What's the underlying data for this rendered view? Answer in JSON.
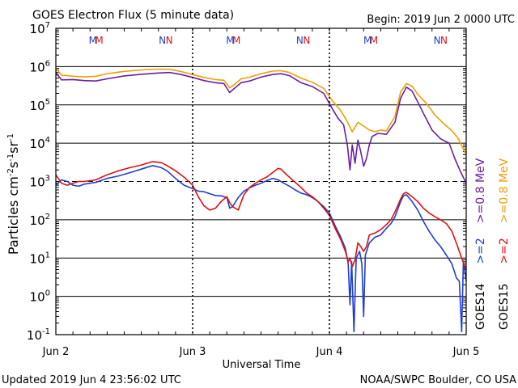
{
  "chart_data": {
    "type": "line",
    "title": "GOES Electron Flux (5 minute data)",
    "begin_label": "Begin: 2019 Jun 2 0000 UTC",
    "xlabel": "Universal Time",
    "ylabel": "Particles cm",
    "ylabel_sup1": "-2",
    "ylabel_mid1": "s",
    "ylabel_sup2": "-1",
    "ylabel_mid2": "sr",
    "ylabel_sup3": "-1",
    "yscale": "log",
    "ylim": [
      0.1,
      10000000
    ],
    "xlim": [
      0,
      72
    ],
    "x_units": "hours since 2019 Jun 2 0000 UTC",
    "x_ticks": [
      {
        "x": 0,
        "label": "Jun 2"
      },
      {
        "x": 24,
        "label": "Jun 3"
      },
      {
        "x": 48,
        "label": "Jun 4"
      },
      {
        "x": 72,
        "label": "Jun 5"
      }
    ],
    "y_ticks": [
      {
        "base": "10",
        "exp": "-1",
        "value": 0.1
      },
      {
        "base": "10",
        "exp": "0",
        "value": 1
      },
      {
        "base": "10",
        "exp": "1",
        "value": 10
      },
      {
        "base": "10",
        "exp": "2",
        "value": 100
      },
      {
        "base": "10",
        "exp": "3",
        "value": 1000
      },
      {
        "base": "10",
        "exp": "4",
        "value": 10000
      },
      {
        "base": "10",
        "exp": "5",
        "value": 100000
      },
      {
        "base": "10",
        "exp": "6",
        "value": 1000000
      },
      {
        "base": "10",
        "exp": "7",
        "value": 10000000
      }
    ],
    "threshold_value": 1000,
    "grid": true,
    "markers": [
      {
        "x": 6.5,
        "label": "M",
        "color": "#1f3fd0"
      },
      {
        "x": 7.6,
        "label": "M",
        "color": "#e01010"
      },
      {
        "x": 18.7,
        "label": "N",
        "color": "#1f3fd0"
      },
      {
        "x": 19.9,
        "label": "N",
        "color": "#e01010"
      },
      {
        "x": 30.6,
        "label": "M",
        "color": "#1f3fd0"
      },
      {
        "x": 31.7,
        "label": "M",
        "color": "#e01010"
      },
      {
        "x": 42.8,
        "label": "N",
        "color": "#1f3fd0"
      },
      {
        "x": 44.0,
        "label": "N",
        "color": "#e01010"
      },
      {
        "x": 54.7,
        "label": "M",
        "color": "#1f3fd0"
      },
      {
        "x": 55.8,
        "label": "M",
        "color": "#e01010"
      },
      {
        "x": 66.9,
        "label": "N",
        "color": "#1f3fd0"
      },
      {
        "x": 68.1,
        "label": "N",
        "color": "#e01010"
      }
    ],
    "legend": {
      "placement": "right",
      "groups": [
        {
          "label": "GOES14",
          "entries": [
            {
              "text": ">=2",
              "color": "#1f3fd0"
            },
            {
              "text": ">=0.8 MeV",
              "color": "#6a1fa0"
            }
          ]
        },
        {
          "label": "GOES15",
          "entries": [
            {
              "text": ">=2",
              "color": "#e01010"
            },
            {
              "text": ">=0.8 MeV",
              "color": "#f0a000"
            }
          ]
        }
      ]
    },
    "series": [
      {
        "name": "GOES14 >=0.8 MeV",
        "color": "#6a1fa0",
        "points": [
          [
            0,
            700000
          ],
          [
            1,
            450000
          ],
          [
            3,
            460000
          ],
          [
            5,
            430000
          ],
          [
            7,
            420000
          ],
          [
            9,
            480000
          ],
          [
            12,
            570000
          ],
          [
            15,
            630000
          ],
          [
            18,
            680000
          ],
          [
            20,
            700000
          ],
          [
            22,
            620000
          ],
          [
            24,
            520000
          ],
          [
            26,
            430000
          ],
          [
            28,
            380000
          ],
          [
            29.5,
            360000
          ],
          [
            30.5,
            210000
          ],
          [
            31.2,
            260000
          ],
          [
            32.5,
            380000
          ],
          [
            34,
            420000
          ],
          [
            36,
            530000
          ],
          [
            38,
            620000
          ],
          [
            39.5,
            650000
          ],
          [
            41,
            580000
          ],
          [
            43,
            380000
          ],
          [
            45,
            300000
          ],
          [
            47,
            200000
          ],
          [
            48.5,
            80000
          ],
          [
            49.5,
            45000
          ],
          [
            50.5,
            30000
          ],
          [
            51.2,
            8000
          ],
          [
            51.6,
            2000
          ],
          [
            52,
            9000
          ],
          [
            52.5,
            3000
          ],
          [
            53,
            12000
          ],
          [
            53.5,
            6000
          ],
          [
            54,
            2500
          ],
          [
            54.5,
            4000
          ],
          [
            55,
            9000
          ],
          [
            55.5,
            15000
          ],
          [
            56.5,
            18000
          ],
          [
            58,
            17000
          ],
          [
            59.5,
            35000
          ],
          [
            60.5,
            150000
          ],
          [
            61.5,
            290000
          ],
          [
            62.5,
            230000
          ],
          [
            63.5,
            120000
          ],
          [
            64.5,
            60000
          ],
          [
            66,
            22000
          ],
          [
            67.5,
            13000
          ],
          [
            69,
            10000
          ],
          [
            70,
            4000
          ],
          [
            71,
            1800
          ],
          [
            72,
            900
          ]
        ]
      },
      {
        "name": "GOES15 >=0.8 MeV",
        "color": "#f0a000",
        "points": [
          [
            0,
            900000
          ],
          [
            1,
            600000
          ],
          [
            3,
            560000
          ],
          [
            5,
            540000
          ],
          [
            7,
            560000
          ],
          [
            9,
            650000
          ],
          [
            12,
            750000
          ],
          [
            15,
            820000
          ],
          [
            18,
            860000
          ],
          [
            20,
            850000
          ],
          [
            22,
            740000
          ],
          [
            24,
            620000
          ],
          [
            26,
            520000
          ],
          [
            28,
            460000
          ],
          [
            29.5,
            440000
          ],
          [
            30.5,
            280000
          ],
          [
            31.2,
            330000
          ],
          [
            32.5,
            480000
          ],
          [
            34,
            530000
          ],
          [
            36,
            650000
          ],
          [
            38,
            760000
          ],
          [
            39.5,
            780000
          ],
          [
            41,
            700000
          ],
          [
            43,
            500000
          ],
          [
            45,
            390000
          ],
          [
            47,
            270000
          ],
          [
            48.5,
            130000
          ],
          [
            50,
            70000
          ],
          [
            51,
            40000
          ],
          [
            52,
            20000
          ],
          [
            53,
            35000
          ],
          [
            54,
            28000
          ],
          [
            55,
            22000
          ],
          [
            56,
            20000
          ],
          [
            57,
            22000
          ],
          [
            58,
            21000
          ],
          [
            59.5,
            50000
          ],
          [
            60.5,
            220000
          ],
          [
            61.5,
            360000
          ],
          [
            62.5,
            310000
          ],
          [
            63.5,
            190000
          ],
          [
            65,
            110000
          ],
          [
            66.5,
            55000
          ],
          [
            68,
            33000
          ],
          [
            69.5,
            21000
          ],
          [
            70.5,
            14000
          ],
          [
            71.5,
            7000
          ],
          [
            72,
            5000
          ]
        ]
      },
      {
        "name": "GOES14 >=2",
        "color": "#1f3fd0",
        "points": [
          [
            0,
            800
          ],
          [
            1,
            1100
          ],
          [
            2,
            1000
          ],
          [
            3,
            800
          ],
          [
            4,
            750
          ],
          [
            5,
            850
          ],
          [
            7,
            950
          ],
          [
            9,
            1200
          ],
          [
            11,
            1400
          ],
          [
            13,
            1700
          ],
          [
            15,
            2100
          ],
          [
            17,
            2600
          ],
          [
            18.5,
            2300
          ],
          [
            19.5,
            1900
          ],
          [
            21,
            1200
          ],
          [
            22.5,
            800
          ],
          [
            24,
            650
          ],
          [
            25,
            560
          ],
          [
            26,
            540
          ],
          [
            27,
            480
          ],
          [
            28,
            430
          ],
          [
            29,
            420
          ],
          [
            30,
            380
          ],
          [
            30.5,
            200
          ],
          [
            31,
            220
          ],
          [
            32,
            380
          ],
          [
            33,
            560
          ],
          [
            34,
            680
          ],
          [
            35,
            800
          ],
          [
            36,
            900
          ],
          [
            37,
            1050
          ],
          [
            38,
            1200
          ],
          [
            39,
            1100
          ],
          [
            40,
            900
          ],
          [
            41,
            750
          ],
          [
            42,
            600
          ],
          [
            43,
            500
          ],
          [
            44,
            450
          ],
          [
            45,
            380
          ],
          [
            46,
            300
          ],
          [
            47,
            220
          ],
          [
            48,
            150
          ],
          [
            49,
            70
          ],
          [
            50,
            35
          ],
          [
            50.8,
            18
          ],
          [
            51.3,
            7
          ],
          [
            51.6,
            0.6
          ],
          [
            51.9,
            8
          ],
          [
            52.3,
            0.12
          ],
          [
            52.7,
            10
          ],
          [
            53.3,
            15
          ],
          [
            53.7,
            7
          ],
          [
            54,
            0.3
          ],
          [
            54.3,
            12
          ],
          [
            55,
            25
          ],
          [
            56,
            35
          ],
          [
            57,
            40
          ],
          [
            58,
            60
          ],
          [
            58.8,
            80
          ],
          [
            59.5,
            120
          ],
          [
            60.5,
            300
          ],
          [
            61,
            420
          ],
          [
            61.5,
            450
          ],
          [
            62.5,
            300
          ],
          [
            63.5,
            180
          ],
          [
            64.5,
            90
          ],
          [
            65.5,
            50
          ],
          [
            66.5,
            30
          ],
          [
            67.5,
            20
          ],
          [
            68.5,
            12
          ],
          [
            69.5,
            7
          ],
          [
            70.3,
            3
          ],
          [
            70.8,
            2.5
          ],
          [
            71.2,
            0.12
          ],
          [
            71.5,
            8
          ],
          [
            72,
            2.5
          ]
        ]
      },
      {
        "name": "GOES15 >=2",
        "color": "#e01010",
        "points": [
          [
            0,
            1500
          ],
          [
            1,
            900
          ],
          [
            2,
            800
          ],
          [
            3,
            900
          ],
          [
            4,
            1000
          ],
          [
            5,
            1000
          ],
          [
            7,
            1100
          ],
          [
            9,
            1500
          ],
          [
            11,
            1900
          ],
          [
            13,
            2300
          ],
          [
            15,
            2700
          ],
          [
            17,
            3300
          ],
          [
            18.5,
            3100
          ],
          [
            19.5,
            2600
          ],
          [
            21,
            1900
          ],
          [
            22.5,
            1300
          ],
          [
            24,
            800
          ],
          [
            25,
            400
          ],
          [
            26,
            230
          ],
          [
            27,
            180
          ],
          [
            28,
            200
          ],
          [
            29,
            300
          ],
          [
            30,
            400
          ],
          [
            30.5,
            280
          ],
          [
            31,
            220
          ],
          [
            32,
            180
          ],
          [
            33,
            450
          ],
          [
            34,
            700
          ],
          [
            35,
            900
          ],
          [
            36,
            1100
          ],
          [
            37,
            1300
          ],
          [
            38,
            1700
          ],
          [
            39,
            2200
          ],
          [
            39.5,
            2100
          ],
          [
            40.5,
            1500
          ],
          [
            41.5,
            1100
          ],
          [
            43,
            700
          ],
          [
            44,
            500
          ],
          [
            45,
            400
          ],
          [
            46,
            300
          ],
          [
            47,
            200
          ],
          [
            48,
            130
          ],
          [
            49,
            60
          ],
          [
            50,
            30
          ],
          [
            50.8,
            15
          ],
          [
            51.3,
            8
          ],
          [
            51.6,
            10
          ],
          [
            52,
            6
          ],
          [
            52.5,
            9
          ],
          [
            53,
            25
          ],
          [
            53.5,
            20
          ],
          [
            54,
            15
          ],
          [
            54.5,
            20
          ],
          [
            55,
            40
          ],
          [
            56,
            45
          ],
          [
            57,
            55
          ],
          [
            58,
            75
          ],
          [
            58.8,
            100
          ],
          [
            59.5,
            160
          ],
          [
            60.5,
            350
          ],
          [
            61,
            480
          ],
          [
            61.5,
            520
          ],
          [
            62.5,
            400
          ],
          [
            63.5,
            300
          ],
          [
            64.5,
            200
          ],
          [
            65.5,
            150
          ],
          [
            66.5,
            120
          ],
          [
            67.5,
            100
          ],
          [
            68.5,
            80
          ],
          [
            69.5,
            50
          ],
          [
            70.5,
            20
          ],
          [
            71.2,
            10
          ],
          [
            71.6,
            7
          ],
          [
            72,
            5
          ]
        ]
      }
    ]
  },
  "footer": {
    "updated": "Updated 2019 Jun  4 23:56:02 UTC",
    "credit": "NOAA/SWPC Boulder, CO USA"
  }
}
